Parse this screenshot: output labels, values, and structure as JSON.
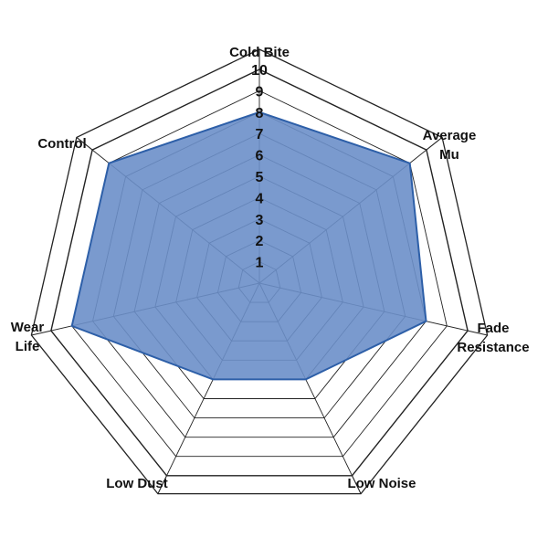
{
  "chart_data": {
    "type": "radar",
    "axes": [
      "Cold Bite",
      "Average Mu",
      "Fade Resistance",
      "Low Noise",
      "Low Dust",
      "Wear Life",
      "Control"
    ],
    "axis_label_lines": [
      [
        "Cold Bite"
      ],
      [
        "Average",
        "Mu"
      ],
      [
        "Fade",
        "Resistance"
      ],
      [
        "Low Noise"
      ],
      [
        "Low Dust"
      ],
      [
        "Wear",
        "Life"
      ],
      [
        "Control"
      ]
    ],
    "values": [
      8,
      9,
      8,
      5,
      5,
      9,
      9
    ],
    "range": [
      0,
      10
    ],
    "ticks": [
      "1",
      "2",
      "3",
      "4",
      "5",
      "6",
      "7",
      "8",
      "9",
      "10"
    ],
    "grid": true,
    "colors": {
      "fill": "#6b8fc9",
      "stroke": "#2d5fa8",
      "grid": "#222222"
    }
  }
}
